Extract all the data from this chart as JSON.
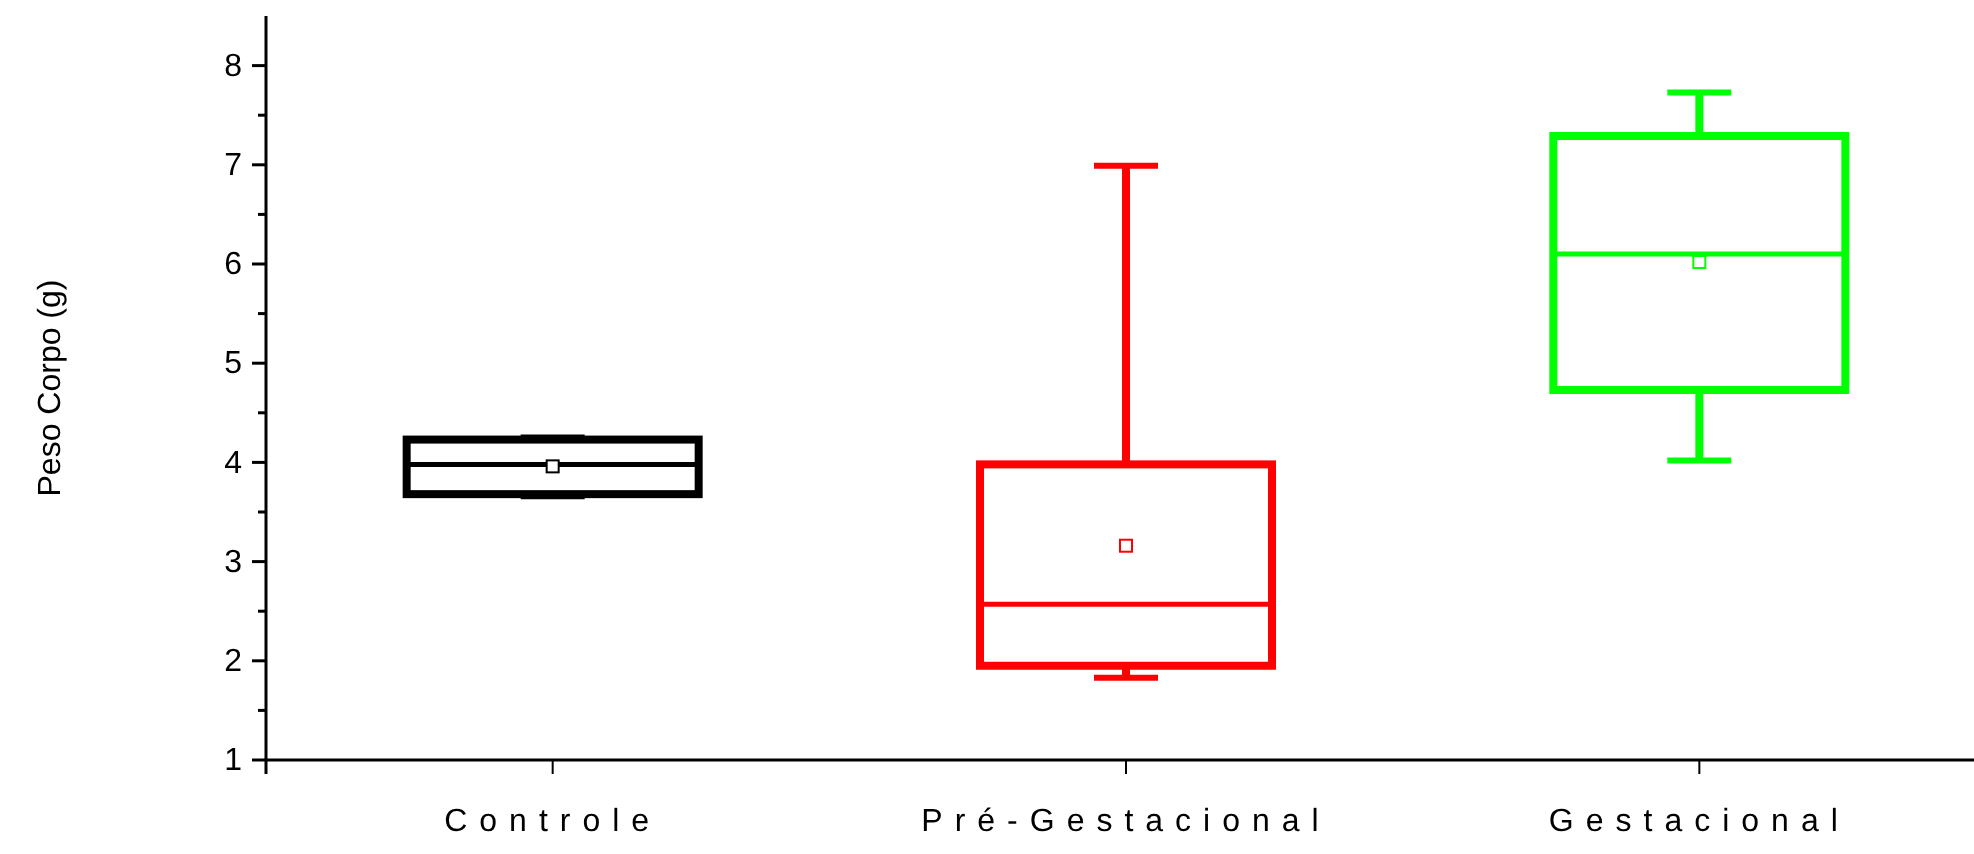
{
  "chart_data": {
    "type": "box",
    "ylabel": "Peso Corpo (g)",
    "categories": [
      "Controle",
      "Pré-Gestacional",
      "Gestacional"
    ],
    "colors": [
      "#000000",
      "#ff0000",
      "#00ff00"
    ],
    "boxes": [
      {
        "low": 3.66,
        "q1": 3.68,
        "median": 3.98,
        "q3": 4.23,
        "high": 4.25,
        "mean": 3.96
      },
      {
        "low": 1.83,
        "q1": 1.95,
        "median": 2.57,
        "q3": 3.98,
        "high": 6.99,
        "mean": 3.16
      },
      {
        "low": 4.02,
        "q1": 4.73,
        "median": 6.1,
        "q3": 7.29,
        "high": 7.73,
        "mean": 6.02
      }
    ],
    "ylim": [
      1,
      8.5
    ],
    "yticks": [
      1,
      {
        "value": 1.5,
        "label": null
      },
      2,
      {
        "value": 2.5,
        "label": null
      },
      3,
      {
        "value": 3.5,
        "label": null
      },
      4,
      {
        "value": 4.5,
        "label": null
      },
      5,
      {
        "value": 5.5,
        "label": null
      },
      6,
      {
        "value": 6.5,
        "label": null
      },
      7,
      {
        "value": 7.5,
        "label": null
      },
      8
    ],
    "grid": false
  }
}
